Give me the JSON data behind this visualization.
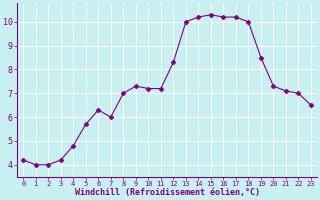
{
  "x": [
    0,
    1,
    2,
    3,
    4,
    5,
    6,
    7,
    8,
    9,
    10,
    11,
    12,
    13,
    14,
    15,
    16,
    17,
    18,
    19,
    20,
    21,
    22,
    23
  ],
  "y": [
    4.2,
    4.0,
    4.0,
    4.2,
    4.8,
    5.7,
    6.3,
    6.0,
    7.0,
    7.3,
    7.2,
    7.2,
    8.3,
    10.0,
    10.2,
    10.3,
    10.2,
    10.2,
    10.0,
    8.5,
    7.3,
    7.1,
    7.0,
    6.5
  ],
  "line_color": "#800080",
  "marker": "D",
  "marker_size": 2.5,
  "background_color": "#c8f0f0",
  "grid_color": "#ffffff",
  "xlabel": "Windchill (Refroidissement éolien,°C)",
  "xlabel_color": "#800080",
  "tick_color": "#800080",
  "spine_color": "#800080",
  "ylim": [
    3.5,
    10.8
  ],
  "xlim": [
    -0.5,
    23.5
  ],
  "yticks": [
    4,
    5,
    6,
    7,
    8,
    9,
    10
  ],
  "xticks": [
    0,
    1,
    2,
    3,
    4,
    5,
    6,
    7,
    8,
    9,
    10,
    11,
    12,
    13,
    14,
    15,
    16,
    17,
    18,
    19,
    20,
    21,
    22,
    23
  ],
  "xtick_labels": [
    "0",
    "1",
    "2",
    "3",
    "4",
    "5",
    "6",
    "7",
    "8",
    "9",
    "10",
    "11",
    "12",
    "13",
    "14",
    "15",
    "16",
    "17",
    "18",
    "19",
    "20",
    "21",
    "22",
    "23"
  ],
  "xtick_fontsize": 5.0,
  "ytick_fontsize": 6.0,
  "xlabel_fontsize": 6.0,
  "linewidth": 0.8
}
